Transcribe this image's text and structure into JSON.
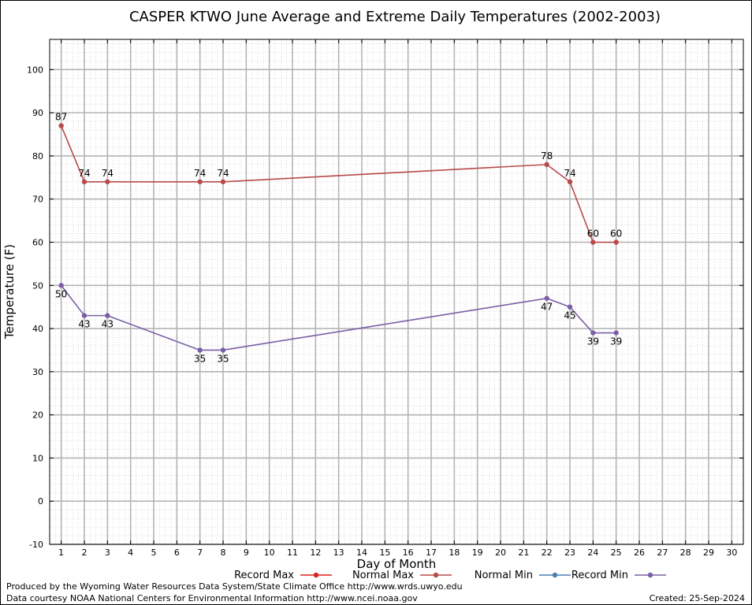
{
  "chart_data": {
    "type": "line",
    "title": "CASPER KTWO June Average and Extreme Daily Temperatures (2002-2003)",
    "xlabel": "Day of Month",
    "ylabel": "Temperature (F)",
    "xlim": [
      0.5,
      30.5
    ],
    "ylim": [
      -10,
      107
    ],
    "x_ticks": [
      1,
      2,
      3,
      4,
      5,
      6,
      7,
      8,
      9,
      10,
      11,
      12,
      13,
      14,
      15,
      16,
      17,
      18,
      19,
      20,
      21,
      22,
      23,
      24,
      25,
      26,
      27,
      28,
      29,
      30
    ],
    "y_ticks": [
      -10,
      0,
      10,
      20,
      30,
      40,
      50,
      60,
      70,
      80,
      90,
      100
    ],
    "grid": true,
    "legend_position": "bottom",
    "series": [
      {
        "name": "Record Max",
        "color": "#dd2222",
        "points": []
      },
      {
        "name": "Normal Max",
        "color": "#b84a4a",
        "points": [
          [
            1,
            87
          ],
          [
            2,
            74
          ],
          [
            3,
            74
          ],
          [
            7,
            74
          ],
          [
            8,
            74
          ],
          [
            22,
            78
          ],
          [
            23,
            74
          ],
          [
            24,
            60
          ],
          [
            25,
            60
          ]
        ],
        "label_position": "above"
      },
      {
        "name": "Normal Min",
        "color": "#4a7fb0",
        "points": []
      },
      {
        "name": "Record Min",
        "color": "#7b5ea7",
        "points": [
          [
            1,
            50
          ],
          [
            2,
            43
          ],
          [
            3,
            43
          ],
          [
            7,
            35
          ],
          [
            8,
            35
          ],
          [
            22,
            47
          ],
          [
            23,
            45
          ],
          [
            24,
            39
          ],
          [
            25,
            39
          ]
        ],
        "label_position": "below"
      }
    ]
  },
  "footer": {
    "produced_by": "Produced by the Wyoming Water Resources Data System/State Climate Office http://www.wrds.uwyo.edu",
    "data_courtesy": "Data courtesy NOAA National Centers for Environmental Information http://www.ncei.noaa.gov",
    "created": "Created: 25-Sep-2024"
  }
}
